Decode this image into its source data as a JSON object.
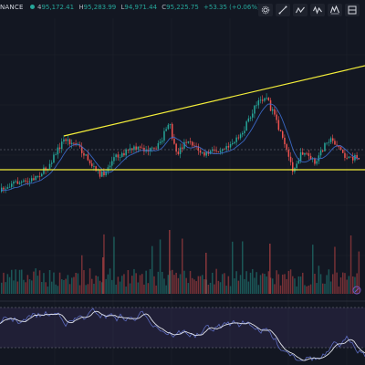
{
  "header": {
    "exchange": "NANCE",
    "ohlc": [
      {
        "key": "4",
        "value": "95,172.41"
      },
      {
        "key": "H",
        "value": "95,283.99"
      },
      {
        "key": "L",
        "value": "94,971.44"
      },
      {
        "key": "C",
        "value": "95,225.75"
      }
    ],
    "change": "+53.35 (+0.06%)"
  },
  "toolbar": {
    "icons": [
      "settings-icon",
      "trend-line-icon",
      "zigzag-icon",
      "zigzag-icon",
      "pattern-icon",
      "long-position-icon"
    ]
  },
  "colors": {
    "background": "#131722",
    "up": "#26a69a",
    "down": "#ef5350",
    "trendline": "#f5ef3a",
    "ma": "#3d6fd3",
    "rsi": "#7e57c2",
    "grid": "#1e222d"
  },
  "chart_data": {
    "type": "candlestick",
    "last_price": "95,225.75",
    "resistance_trendline": "rising",
    "support_level": "horizontal",
    "volume_panel": true,
    "oscillator_panel": true
  }
}
